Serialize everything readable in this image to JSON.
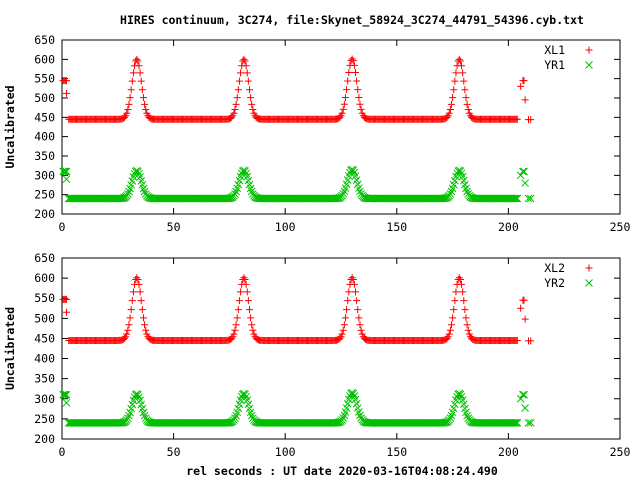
{
  "title": "HIRES continuum, 3C274, file:Skynet_58924_3C274_44791_54396.cyb.txt",
  "xlabel": "rel seconds : UT date 2020-03-16T04:08:24.490",
  "colors": {
    "red": "#ff0000",
    "green": "#00c000",
    "axis": "#000000"
  },
  "chart_data": [
    {
      "type": "scatter",
      "ylabel": "Uncalibrated",
      "xlim": [
        0,
        250
      ],
      "ylim": [
        200,
        650
      ],
      "xticks": [
        0,
        50,
        100,
        150,
        200,
        250
      ],
      "yticks": [
        200,
        250,
        300,
        350,
        400,
        450,
        500,
        550,
        600,
        650
      ],
      "legend_position": "top-right",
      "series": [
        {
          "name": "XL1",
          "marker": "plus",
          "color": "#ff0000",
          "baseline": 445,
          "peaks": [
            [
              33.5,
              600
            ],
            [
              81.5,
              600
            ],
            [
              130,
              601
            ],
            [
              178,
              600
            ]
          ],
          "calibration_points": [
            [
              0.5,
              545
            ],
            [
              1,
              545
            ],
            [
              1.5,
              545
            ],
            [
              2,
              545
            ],
            [
              2,
              512
            ],
            [
              205.5,
              530
            ],
            [
              206.5,
              545
            ],
            [
              207,
              545
            ],
            [
              207.5,
              495
            ],
            [
              209,
              444
            ],
            [
              210,
              444
            ]
          ]
        },
        {
          "name": "YR1",
          "marker": "cross",
          "color": "#00c000",
          "baseline": 240,
          "peaks": [
            [
              33.5,
              312
            ],
            [
              81.5,
              313
            ],
            [
              130,
              315
            ],
            [
              178,
              313
            ]
          ],
          "calibration_points": [
            [
              0.5,
              310
            ],
            [
              1,
              310
            ],
            [
              1.5,
              310
            ],
            [
              2,
              310
            ],
            [
              2,
              290
            ],
            [
              205.5,
              300
            ],
            [
              206.5,
              310
            ],
            [
              207,
              310
            ],
            [
              207.5,
              280
            ],
            [
              209,
              240
            ],
            [
              210,
              240
            ]
          ]
        }
      ]
    },
    {
      "type": "scatter",
      "ylabel": "Uncalibrated",
      "xlim": [
        0,
        250
      ],
      "ylim": [
        200,
        650
      ],
      "xticks": [
        0,
        50,
        100,
        150,
        200,
        250
      ],
      "yticks": [
        200,
        250,
        300,
        350,
        400,
        450,
        500,
        550,
        600,
        650
      ],
      "legend_position": "top-right",
      "series": [
        {
          "name": "XL2",
          "marker": "plus",
          "color": "#ff0000",
          "baseline": 445,
          "peaks": [
            [
              33.5,
              601
            ],
            [
              81.5,
              601
            ],
            [
              130,
              601
            ],
            [
              178,
              601
            ]
          ],
          "calibration_points": [
            [
              0.5,
              547
            ],
            [
              1,
              547
            ],
            [
              1.5,
              547
            ],
            [
              2,
              547
            ],
            [
              2,
              515
            ],
            [
              205.5,
              525
            ],
            [
              206.5,
              545
            ],
            [
              207,
              545
            ],
            [
              207.5,
              498
            ],
            [
              209,
              444
            ],
            [
              210,
              444
            ]
          ]
        },
        {
          "name": "YR2",
          "marker": "cross",
          "color": "#00c000",
          "baseline": 240,
          "peaks": [
            [
              33.5,
              312
            ],
            [
              81.5,
              313
            ],
            [
              130,
              315
            ],
            [
              178,
              313
            ]
          ],
          "calibration_points": [
            [
              0.5,
              310
            ],
            [
              1,
              310
            ],
            [
              1.5,
              310
            ],
            [
              2,
              310
            ],
            [
              2,
              290
            ],
            [
              205.5,
              300
            ],
            [
              206.5,
              310
            ],
            [
              207,
              310
            ],
            [
              207.5,
              277
            ],
            [
              209,
              240
            ],
            [
              210,
              240
            ]
          ]
        }
      ]
    }
  ]
}
